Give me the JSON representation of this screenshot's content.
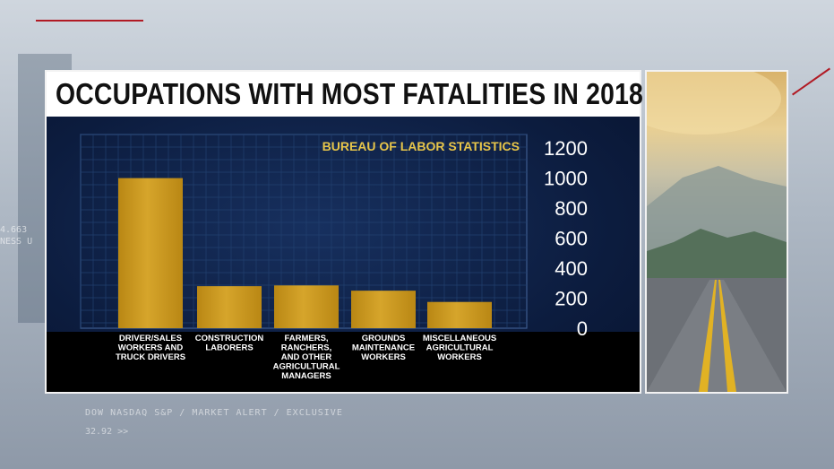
{
  "graphic": {
    "title": "OCCUPATIONS WITH MOST FATALITIES IN 2018",
    "source": "BUREAU OF LABOR STATISTICS"
  },
  "background": {
    "ticker_line1": "DOW NASDAQ S&P / MARKET ALERT / EXCLUSIVE",
    "ticker_line2": "32.92 >>",
    "left_text_line1": "4.663",
    "left_text_line2": "NESS U"
  },
  "colors": {
    "bar": "#d6a52b",
    "title_text": "#111111",
    "source_text": "#e8c64a",
    "axis_text": "#ffffff"
  },
  "chart_data": {
    "type": "bar",
    "title": "OCCUPATIONS WITH MOST FATALITIES IN 2018",
    "subtitle": "BUREAU OF LABOR STATISTICS",
    "categories": [
      [
        "DRIVER/SALES",
        "WORKERS AND",
        "TRUCK DRIVERS"
      ],
      [
        "CONSTRUCTION",
        "LABORERS"
      ],
      [
        "FARMERS,",
        "RANCHERS,",
        "AND OTHER",
        "AGRICULTURAL",
        "MANAGERS"
      ],
      [
        "GROUNDS",
        "MAINTENANCE",
        "WORKERS"
      ],
      [
        "MISCELLANEOUS",
        "AGRICULTURAL",
        "WORKERS"
      ]
    ],
    "values": [
      1000,
      280,
      285,
      250,
      175
    ],
    "yticks": [
      0,
      200,
      400,
      600,
      800,
      1000,
      1200
    ],
    "ylim": [
      0,
      1200
    ],
    "yaxis_position": "right",
    "grid": true
  }
}
